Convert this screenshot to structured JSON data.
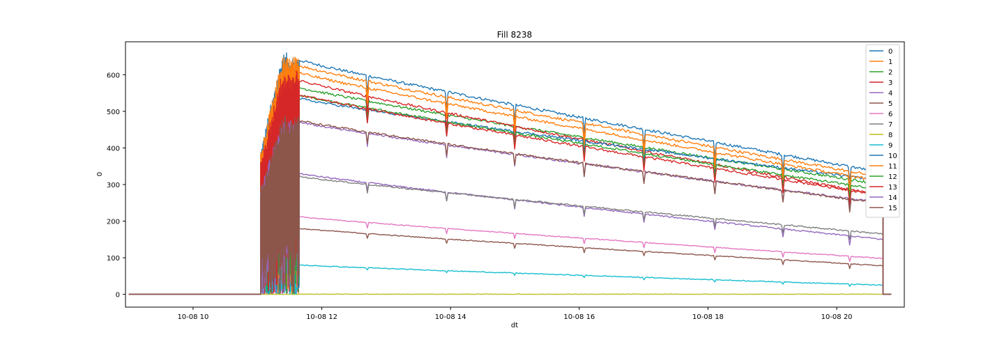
{
  "chart_data": {
    "type": "line",
    "title": "Fill 8238",
    "xlabel": "dt",
    "ylabel": "0",
    "xlim": [
      8.95,
      21.05
    ],
    "ylim": [
      -35,
      690
    ],
    "x_ticks": [
      {
        "value": 10,
        "label": "10-08 10"
      },
      {
        "value": 12,
        "label": "10-08 12"
      },
      {
        "value": 14,
        "label": "10-08 14"
      },
      {
        "value": 16,
        "label": "10-08 16"
      },
      {
        "value": 18,
        "label": "10-08 18"
      },
      {
        "value": 20,
        "label": "10-08 20"
      }
    ],
    "y_ticks": [
      0,
      100,
      200,
      300,
      400,
      500,
      600
    ],
    "legend_position": "top-right",
    "x_start": 9.0,
    "ramp_start": 11.05,
    "stable_start": 11.65,
    "x_end": 20.72,
    "tail_end": 20.85,
    "series": [
      {
        "name": "0",
        "color": "#1f77b4",
        "peak": 660,
        "start": 640,
        "end": 333
      },
      {
        "name": "1",
        "color": "#ff7f0e",
        "peak": 650,
        "start": 625,
        "end": 320
      },
      {
        "name": "2",
        "color": "#2ca02c",
        "peak": 570,
        "start": 565,
        "end": 300
      },
      {
        "name": "3",
        "color": "#d62728",
        "peak": 590,
        "start": 585,
        "end": 270
      },
      {
        "name": "4",
        "color": "#9467bd",
        "peak": 330,
        "start": 330,
        "end": 150
      },
      {
        "name": "5",
        "color": "#8c564b",
        "peak": 180,
        "start": 180,
        "end": 78
      },
      {
        "name": "6",
        "color": "#e377c2",
        "peak": 215,
        "start": 212,
        "end": 98
      },
      {
        "name": "7",
        "color": "#7f7f7f",
        "peak": 325,
        "start": 322,
        "end": 165
      },
      {
        "name": "8",
        "color": "#bcbd22",
        "peak": 0,
        "start": 0,
        "end": 0
      },
      {
        "name": "9",
        "color": "#17becf",
        "peak": 85,
        "start": 80,
        "end": 25
      },
      {
        "name": "10",
        "color": "#1f77b4",
        "peak": 560,
        "start": 535,
        "end": 310
      },
      {
        "name": "11",
        "color": "#ff7f0e",
        "peak": 630,
        "start": 605,
        "end": 308
      },
      {
        "name": "12",
        "color": "#2ca02c",
        "peak": 560,
        "start": 545,
        "end": 285
      },
      {
        "name": "13",
        "color": "#d62728",
        "peak": 610,
        "start": 545,
        "end": 270
      },
      {
        "name": "14",
        "color": "#9467bd",
        "peak": 480,
        "start": 470,
        "end": 250
      },
      {
        "name": "15",
        "color": "#8c564b",
        "peak": 485,
        "start": 475,
        "end": 248
      }
    ]
  }
}
